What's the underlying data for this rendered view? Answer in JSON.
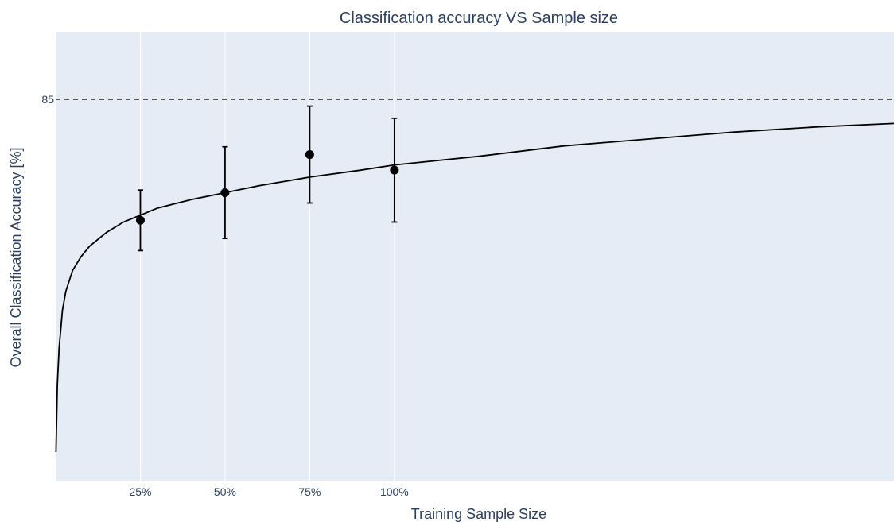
{
  "chart_data": {
    "type": "scatter",
    "title": "Classification accuracy VS Sample size",
    "xlabel": "Training Sample Size",
    "ylabel": "Overall Classification Accuracy [%]",
    "x_ticks": [
      {
        "value": 25,
        "label": "25%"
      },
      {
        "value": 50,
        "label": "50%"
      },
      {
        "value": 75,
        "label": "75%"
      },
      {
        "value": 100,
        "label": "100%"
      }
    ],
    "y_ticks": [
      {
        "value": 85,
        "label": "85"
      }
    ],
    "xlim": [
      0,
      247.5
    ],
    "ylim": [
      62.9,
      88.9
    ],
    "grid": true,
    "colors": {
      "plot_background": "#e5ecf6",
      "grid": "#ffffff",
      "marker": "#000000",
      "line": "#000000",
      "text": "#2a3f5f"
    },
    "reference_line": {
      "y": 85,
      "style": "dashed"
    },
    "points": [
      {
        "x": 25,
        "y": 78.0,
        "error": 1.75
      },
      {
        "x": 50,
        "y": 79.6,
        "error": 2.65
      },
      {
        "x": 75,
        "y": 81.8,
        "error": 2.8
      },
      {
        "x": 100,
        "y": 80.9,
        "error": 3.0
      }
    ],
    "fit_curve": {
      "x": [
        0.1,
        0.5,
        1,
        2,
        3,
        5,
        7.5,
        10,
        15,
        20,
        25,
        30,
        40,
        50,
        60,
        75,
        90,
        100,
        125,
        150,
        175,
        200,
        225,
        247.5
      ],
      "y": [
        64.6,
        68.5,
        70.6,
        72.8,
        73.9,
        75.1,
        75.9,
        76.5,
        77.3,
        77.9,
        78.3,
        78.7,
        79.2,
        79.6,
        80.0,
        80.5,
        80.9,
        81.2,
        81.7,
        82.3,
        82.7,
        83.1,
        83.4,
        83.6
      ]
    }
  }
}
